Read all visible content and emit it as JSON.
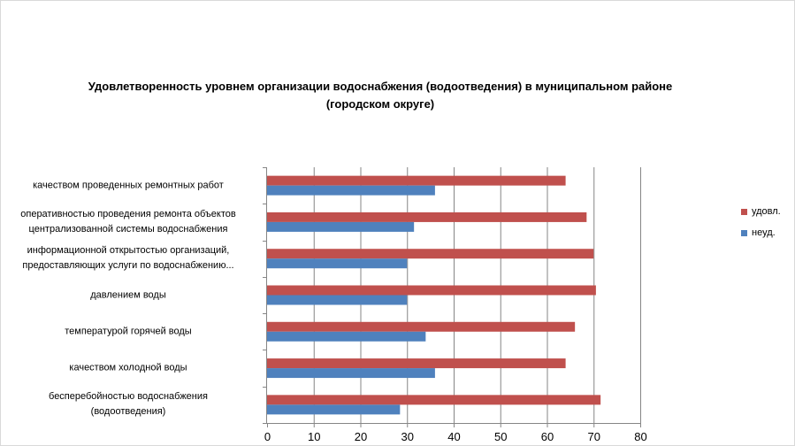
{
  "chart_data": {
    "type": "bar",
    "orientation": "horizontal",
    "title_line1": "Удовлетворенность уровнем организации водоснабжения (водоотведения) в муниципальном районе",
    "title_line2": "(городском округе)",
    "categories": [
      [
        "качеством  проведенных  ремонтных работ"
      ],
      [
        "оперативностью  проведения  ремонта объектов",
        "централизованной системы водоснабжения"
      ],
      [
        "информационной открытостью организаций,",
        "предоставляющих услуги по водоснабжению..."
      ],
      [
        "давлением  воды"
      ],
      [
        "температурой горячей воды"
      ],
      [
        "качеством  холодной воды"
      ],
      [
        "бесперебойностью  водоснабжения",
        "(водоотведения)"
      ]
    ],
    "series": [
      {
        "name": "удовл.",
        "color": "#c0504d",
        "values": [
          64,
          68.5,
          70,
          70.5,
          66,
          64,
          71.5
        ]
      },
      {
        "name": "неуд.",
        "color": "#4f81bd",
        "values": [
          36,
          31.5,
          30,
          30,
          34,
          36,
          28.5
        ]
      }
    ],
    "xlim": [
      0,
      80
    ],
    "xticks": [
      "0",
      "10",
      "20",
      "30",
      "40",
      "50",
      "60",
      "70",
      "80"
    ],
    "xlabel": "",
    "ylabel": "",
    "grid": true,
    "legend_position": "right"
  }
}
